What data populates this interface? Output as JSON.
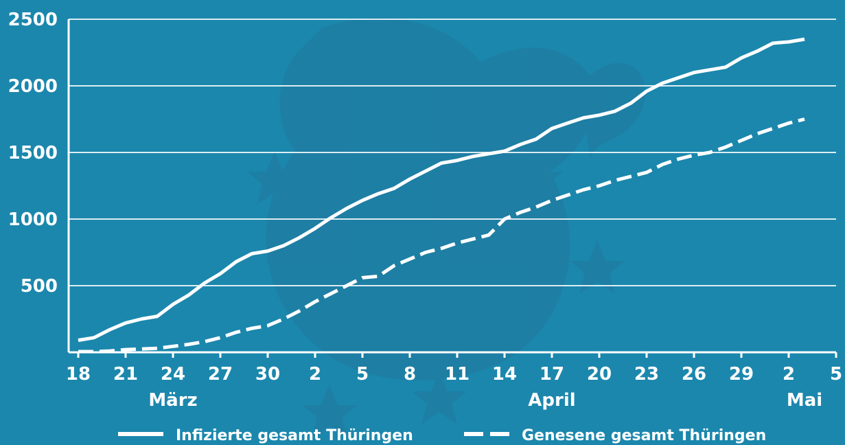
{
  "colors": {
    "background": "#1b87ad",
    "line": "#ffffff",
    "watermark": "#1f7ea3"
  },
  "watermark": "thuringia-lion-coat-of-arms",
  "chart_data": {
    "type": "line",
    "title": "",
    "xlabel": "",
    "ylabel": "",
    "ylim": [
      0,
      2500
    ],
    "xlim": [
      "2020-03-18",
      "2020-05-05"
    ],
    "yticks": [
      500,
      1000,
      1500,
      2000,
      2500
    ],
    "xticks": [
      {
        "date": "2020-03-18",
        "label": "18"
      },
      {
        "date": "2020-03-21",
        "label": "21"
      },
      {
        "date": "2020-03-24",
        "label": "24"
      },
      {
        "date": "2020-03-27",
        "label": "27"
      },
      {
        "date": "2020-03-30",
        "label": "30"
      },
      {
        "date": "2020-04-02",
        "label": "2"
      },
      {
        "date": "2020-04-05",
        "label": "5"
      },
      {
        "date": "2020-04-08",
        "label": "8"
      },
      {
        "date": "2020-04-11",
        "label": "11"
      },
      {
        "date": "2020-04-14",
        "label": "14"
      },
      {
        "date": "2020-04-17",
        "label": "17"
      },
      {
        "date": "2020-04-20",
        "label": "20"
      },
      {
        "date": "2020-04-23",
        "label": "23"
      },
      {
        "date": "2020-04-26",
        "label": "26"
      },
      {
        "date": "2020-04-29",
        "label": "29"
      },
      {
        "date": "2020-05-02",
        "label": "2"
      },
      {
        "date": "2020-05-05",
        "label": "5"
      }
    ],
    "month_labels": [
      {
        "date": "2020-03-24",
        "label": "März"
      },
      {
        "date": "2020-04-17",
        "label": "April"
      },
      {
        "date": "2020-05-03",
        "label": "Mai"
      }
    ],
    "grid": true,
    "legend_position": "bottom",
    "x": [
      "2020-03-18",
      "2020-03-19",
      "2020-03-20",
      "2020-03-21",
      "2020-03-22",
      "2020-03-23",
      "2020-03-24",
      "2020-03-25",
      "2020-03-26",
      "2020-03-27",
      "2020-03-28",
      "2020-03-29",
      "2020-03-30",
      "2020-03-31",
      "2020-04-01",
      "2020-04-02",
      "2020-04-03",
      "2020-04-04",
      "2020-04-05",
      "2020-04-06",
      "2020-04-07",
      "2020-04-08",
      "2020-04-09",
      "2020-04-10",
      "2020-04-11",
      "2020-04-12",
      "2020-04-13",
      "2020-04-14",
      "2020-04-15",
      "2020-04-16",
      "2020-04-17",
      "2020-04-18",
      "2020-04-19",
      "2020-04-20",
      "2020-04-21",
      "2020-04-22",
      "2020-04-23",
      "2020-04-24",
      "2020-04-25",
      "2020-04-26",
      "2020-04-27",
      "2020-04-28",
      "2020-04-29",
      "2020-04-30",
      "2020-05-01",
      "2020-05-02",
      "2020-05-03"
    ],
    "series": [
      {
        "name": "Infizierte gesamt Thüringen",
        "style": "solid",
        "values": [
          90,
          110,
          170,
          220,
          250,
          270,
          360,
          430,
          520,
          590,
          680,
          740,
          760,
          800,
          860,
          930,
          1010,
          1080,
          1140,
          1190,
          1230,
          1300,
          1360,
          1420,
          1440,
          1470,
          1490,
          1510,
          1560,
          1600,
          1680,
          1720,
          1760,
          1780,
          1810,
          1870,
          1960,
          2020,
          2060,
          2100,
          2120,
          2140,
          2210,
          2260,
          2320,
          2330,
          2350
        ]
      },
      {
        "name": "Genesene gesamt Thüringen",
        "style": "dashed",
        "values": [
          5,
          5,
          10,
          20,
          25,
          30,
          45,
          60,
          80,
          110,
          150,
          180,
          200,
          250,
          310,
          380,
          440,
          500,
          560,
          570,
          650,
          700,
          750,
          780,
          820,
          850,
          880,
          1000,
          1050,
          1090,
          1140,
          1180,
          1220,
          1250,
          1290,
          1320,
          1350,
          1410,
          1450,
          1480,
          1500,
          1540,
          1590,
          1640,
          1680,
          1720,
          1750
        ]
      }
    ]
  }
}
